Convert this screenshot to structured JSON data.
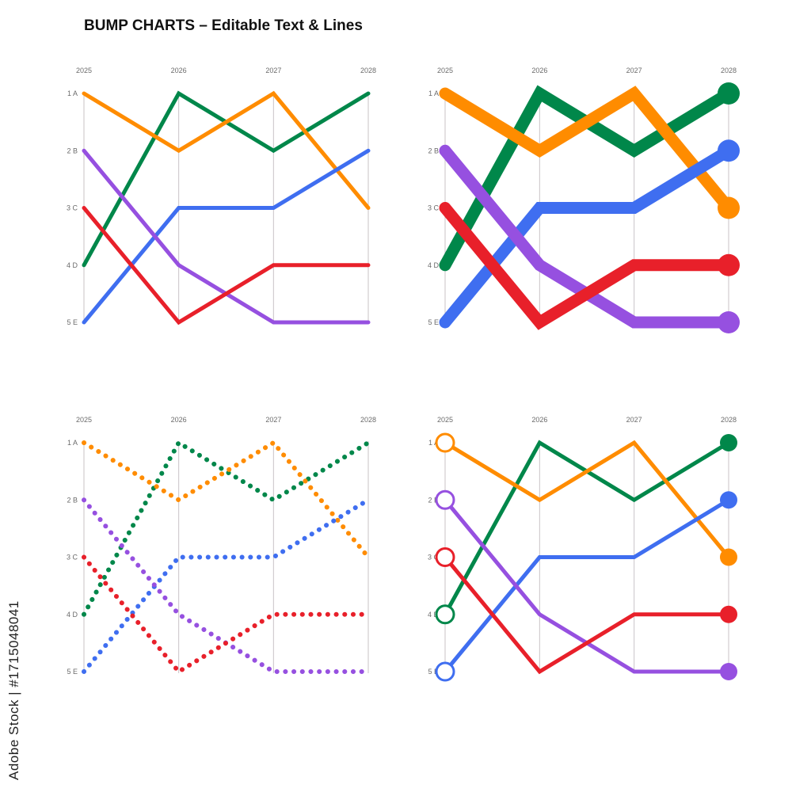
{
  "title": "BUMP CHARTS – Editable Text & Lines",
  "watermark_text": "Adobe Stock | #1715048041",
  "chart_data": [
    {
      "type": "line",
      "style": "thin-lines",
      "x": [
        "2025",
        "2026",
        "2027",
        "2028"
      ],
      "y_ticks": [
        "1  A",
        "2  B",
        "3  C",
        "4  D",
        "5  E"
      ],
      "y_scale": "rank (1 at top)",
      "ylim": [
        1,
        5
      ],
      "grid": "vertical lines",
      "legend": "none",
      "series": [
        {
          "color": "#00874a",
          "values": [
            4,
            1,
            2,
            1
          ]
        },
        {
          "color": "#ff8c00",
          "values": [
            1,
            2,
            1,
            3
          ]
        },
        {
          "color": "#3f6ef0",
          "values": [
            5,
            3,
            3,
            2
          ]
        },
        {
          "color": "#9650e0",
          "values": [
            2,
            4,
            5,
            5
          ]
        },
        {
          "color": "#e8202a",
          "values": [
            3,
            5,
            4,
            4
          ]
        }
      ]
    },
    {
      "type": "line",
      "style": "thick-lines-with-end-dots",
      "x": [
        "2025",
        "2026",
        "2027",
        "2028"
      ],
      "y_ticks": [
        "1  A",
        "2  B",
        "3  C",
        "4  D",
        "5  E"
      ],
      "y_scale": "rank (1 at top)",
      "ylim": [
        1,
        5
      ],
      "grid": "vertical lines",
      "legend": "none",
      "series": [
        {
          "color": "#00874a",
          "values": [
            4,
            1,
            2,
            1
          ]
        },
        {
          "color": "#ff8c00",
          "values": [
            1,
            2,
            1,
            3
          ]
        },
        {
          "color": "#3f6ef0",
          "values": [
            5,
            3,
            3,
            2
          ]
        },
        {
          "color": "#9650e0",
          "values": [
            2,
            4,
            5,
            5
          ]
        },
        {
          "color": "#e8202a",
          "values": [
            3,
            5,
            4,
            4
          ]
        }
      ]
    },
    {
      "type": "line",
      "style": "dotted-lines",
      "x": [
        "2025",
        "2026",
        "2027",
        "2028"
      ],
      "y_ticks": [
        "1  A",
        "2  B",
        "3  C",
        "4  D",
        "5  E"
      ],
      "y_scale": "rank (1 at top)",
      "ylim": [
        1,
        5
      ],
      "grid": "vertical lines",
      "legend": "none",
      "series": [
        {
          "color": "#00874a",
          "values": [
            4,
            1,
            2,
            1
          ]
        },
        {
          "color": "#ff8c00",
          "values": [
            1,
            2,
            1,
            3
          ]
        },
        {
          "color": "#3f6ef0",
          "values": [
            5,
            3,
            3,
            2
          ]
        },
        {
          "color": "#9650e0",
          "values": [
            2,
            4,
            5,
            5
          ]
        },
        {
          "color": "#e8202a",
          "values": [
            3,
            5,
            4,
            4
          ]
        }
      ]
    },
    {
      "type": "line",
      "style": "lines-with-open-start-and-filled-end-markers",
      "x": [
        "2025",
        "2026",
        "2027",
        "2028"
      ],
      "y_ticks": [
        "1  A",
        "2  B",
        "3  C",
        "4  D",
        "5  E"
      ],
      "y_scale": "rank (1 at top)",
      "ylim": [
        1,
        5
      ],
      "grid": "vertical lines",
      "legend": "none",
      "series": [
        {
          "color": "#00874a",
          "values": [
            4,
            1,
            2,
            1
          ]
        },
        {
          "color": "#ff8c00",
          "values": [
            1,
            2,
            1,
            3
          ]
        },
        {
          "color": "#3f6ef0",
          "values": [
            5,
            3,
            3,
            2
          ]
        },
        {
          "color": "#9650e0",
          "values": [
            2,
            4,
            5,
            5
          ]
        },
        {
          "color": "#e8202a",
          "values": [
            3,
            5,
            4,
            4
          ]
        }
      ]
    }
  ]
}
